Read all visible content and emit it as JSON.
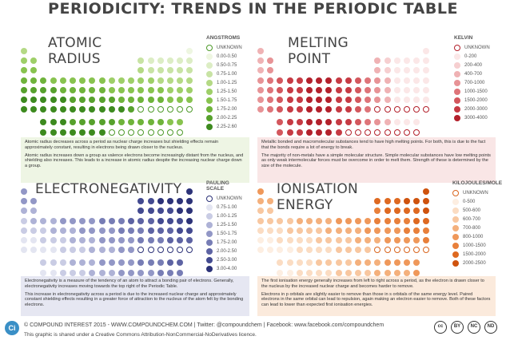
{
  "title": "PERIODICITY: TRENDS IN THE PERIODIC TABLE",
  "panels": {
    "atomic": {
      "title": "ATOMIC RADIUS",
      "unit": "ANGSTROMS",
      "legend": [
        "UNKNOWN",
        "0.00-0.50",
        "0.50-0.75",
        "0.75-1.00",
        "1.00-1.25",
        "1.25-1.50",
        "1.50-1.75",
        "1.75-2.00",
        "2.00-2.25",
        "2.25-2.60"
      ],
      "colors": [
        "#ffffff",
        "#eef6e1",
        "#dcedc4",
        "#c8e3a4",
        "#b4d985",
        "#9ecf68",
        "#88c34f",
        "#6fb33b",
        "#57a12d",
        "#3d8a1f"
      ],
      "border": "#4d9a29",
      "desc": [
        "Atomic radius decreases across a period as nuclear charge increases but shielding effects remain approximately constant, resulting in electrons being drawn closer to the nucleus.",
        "Atomic radius increases down a group as valence electrons become increasingly distant from the nucleus, and shielding also increases. This leads to a increase in atomic radius despite the increasing nuclear charge down a group."
      ]
    },
    "melting": {
      "title": "MELTING POINT",
      "unit": "KELVIN",
      "legend": [
        "UNKNOWN",
        "0-200",
        "200-400",
        "400-700",
        "700-1000",
        "1000-1500",
        "1500-2000",
        "2000-3000",
        "3000-4000"
      ],
      "colors": [
        "#ffffff",
        "#fbe7e7",
        "#f6cfd0",
        "#efb2b4",
        "#e79396",
        "#de7479",
        "#d3575d",
        "#c63a43",
        "#b3202b"
      ],
      "border": "#b3202b",
      "desc": [
        "Metallic bonded and macromolecular substances tend to have high melting points. For both, this is due to the fact that the bonds require a lot of energy to break.",
        "The majority of non-metals have a simple molecular structure. Simple molecular substances have low melting points as only weak intermolecular forces must be overcome in order to melt them. Strength of these is determined by the size of the molecule."
      ]
    },
    "electro": {
      "title": "ELECTRONEGATIVITY",
      "unit": "PAULING SCALE",
      "legend": [
        "UNKNOWN",
        "0.75-1.00",
        "1.00-1.25",
        "1.25-1.50",
        "1.50-1.75",
        "1.75-2.00",
        "2.00-2.50",
        "2.50-3.00",
        "3.00-4.00"
      ],
      "colors": [
        "#ffffff",
        "#e3e5f1",
        "#c9cce4",
        "#aeb2d6",
        "#9297c6",
        "#777db5",
        "#5d63a3",
        "#434a90",
        "#2c3278"
      ],
      "border": "#2c3278",
      "desc": [
        "Electronegativity is a measure of the tendency of an atom to attract a bonding pair of electrons. Generally, electronegativity increases moving towards the top right of the Periodic Table.",
        "This increase in electronegativity across a period is due to the increased nuclear charge and approximately constant shielding effects resulting in a greater force of attraction to the nucleus of the atom felt by the bonding electrons."
      ]
    },
    "ionisation": {
      "title": "IONISATION ENERGY",
      "unit": "KILOJOULES/MOLE",
      "legend": [
        "UNKNOWN",
        "0-500",
        "500-600",
        "600-700",
        "700-800",
        "800-1000",
        "1000-1500",
        "1500-2000",
        "2000-2500"
      ],
      "colors": [
        "#ffffff",
        "#fdeee1",
        "#fbdcc2",
        "#f8c7a0",
        "#f4b07c",
        "#ef985a",
        "#e8803b",
        "#de6921",
        "#cf530e"
      ],
      "border": "#d9651e",
      "desc": [
        "The first ionisation energy generally increases from left to right across a period, as the electron is drawn closer to the nucleus by the increased nuclear charge and becomes harder to remove.",
        "Electrons in p orbitals are slightly easier to remove than those in s orbitals of the same energy level. Paired electrons in the same orbital can lead to repulsion, again making an electron easier to remove. Both of these factors can lead to lower than expected first ionisation energies."
      ]
    }
  },
  "footer": {
    "logo": "Ci",
    "line1": "© COMPOUND INTEREST 2015 - WWW.COMPOUNDCHEM.COM | Twitter: @compoundchem | Facebook: www.facebook.com/compoundchem",
    "line2": "This graphic is shared under a Creative Commons Attribution-NonCommercial-NoDerivatives licence.",
    "cc": [
      "cc",
      "BY",
      "NC",
      "ND"
    ]
  }
}
